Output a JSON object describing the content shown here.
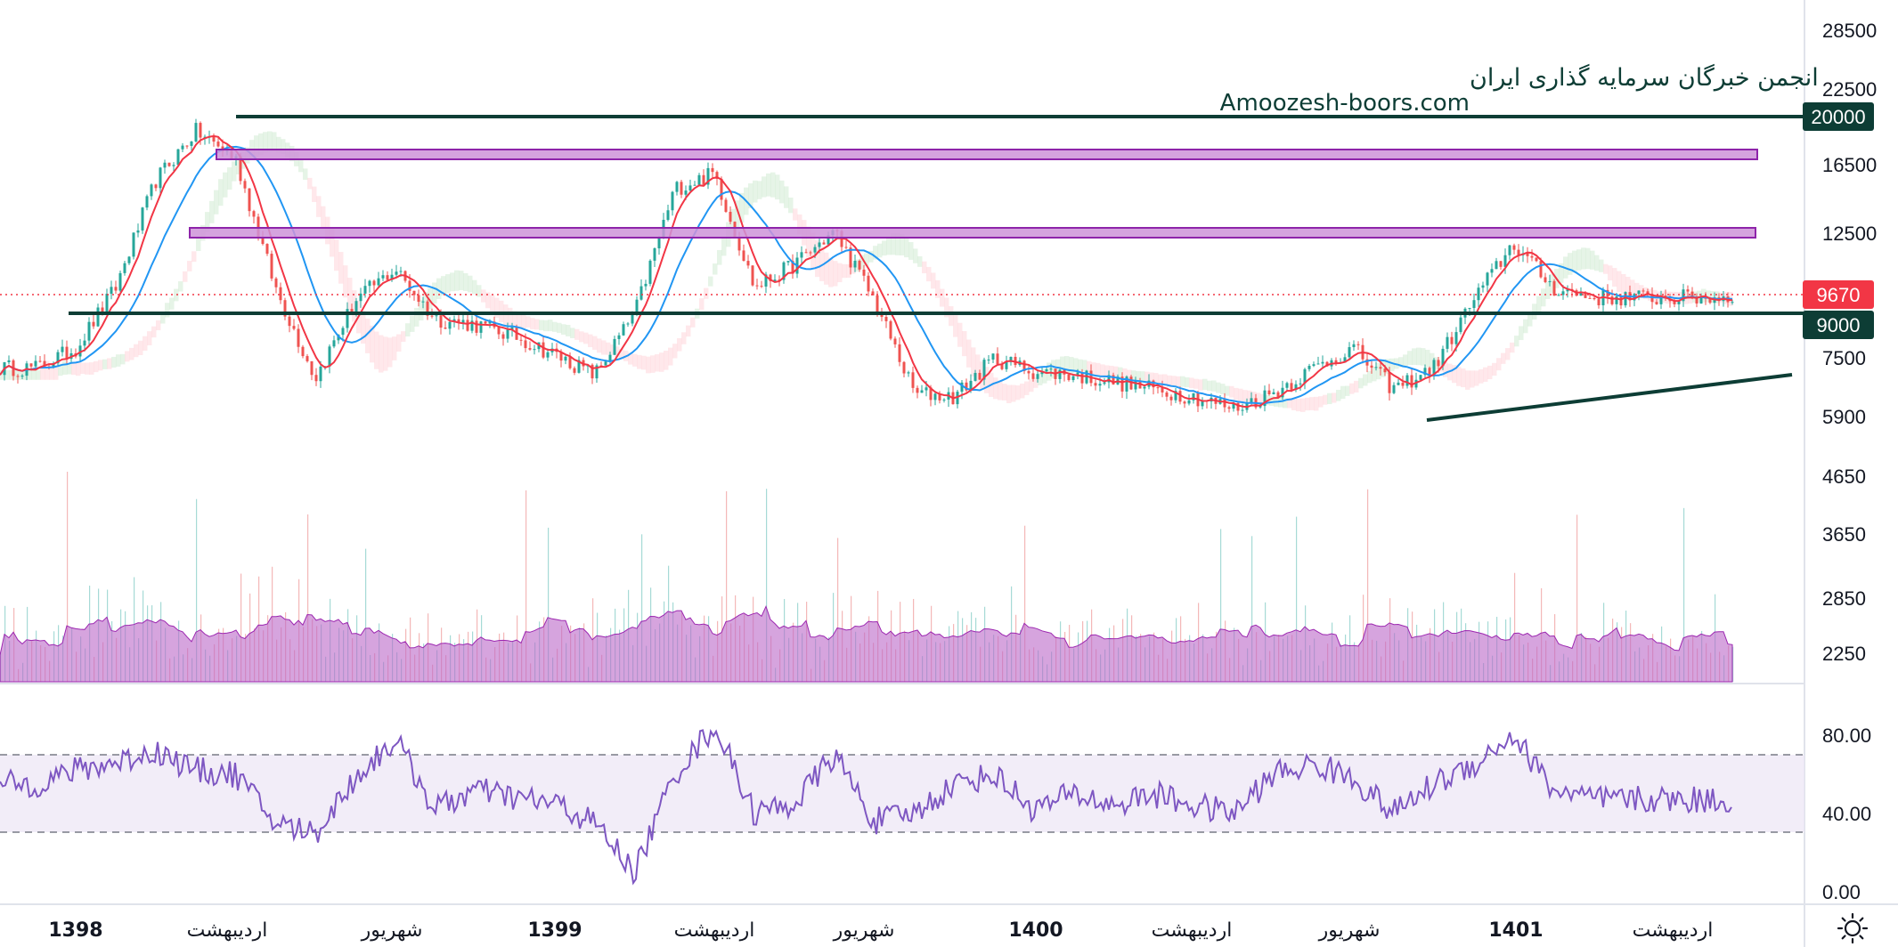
{
  "watermark": {
    "line1": "انجمن خبرگان سرمایه گذاری ایران",
    "line2": "Amoozesh-boors.com"
  },
  "price_axis": {
    "ticks": [
      "28500",
      "22500",
      "16500",
      "12500",
      "7500",
      "5900",
      "4650",
      "3650",
      "2850",
      "2250"
    ]
  },
  "rsi_axis": {
    "ticks": [
      "80.00",
      "40.00",
      "0.00"
    ]
  },
  "badges": {
    "resistance": "20000",
    "current": "9670",
    "support": "9000"
  },
  "time_axis": {
    "labels": [
      "1398",
      "اردیبهشت",
      "شهریور",
      "1399",
      "اردیبهشت",
      "شهریور",
      "1400",
      "اردیبهشت",
      "شهریور",
      "1401",
      "اردیبهشت"
    ],
    "year_labels": [
      "1398",
      "1399",
      "1400",
      "1401"
    ]
  },
  "colors": {
    "up_candle": "#26a69a",
    "down_candle": "#ef5350",
    "fast_ma": "#f23645",
    "slow_ma": "#2196f3",
    "volume_area": "#ba68c8",
    "rsi_line": "#7e57c2",
    "rsi_band": "#ede7f6",
    "zone_fill": "#ce93d8",
    "zone_stroke": "#8e24aa",
    "level_line": "#0d3d35",
    "current_badge": "#f23645"
  },
  "icons": {
    "settings": "sun-gear-icon"
  },
  "chart_data": {
    "type": "candlestick",
    "price_scale": "log",
    "horizontal_levels": [
      20000,
      9000
    ],
    "zones": [
      {
        "from": 16900,
        "to": 17800
      },
      {
        "from": 11900,
        "to": 12500
      }
    ],
    "current_price": 9670,
    "rsi_band": [
      30,
      70
    ],
    "trendline": [
      {
        "x": "1400-12",
        "y": 5600
      },
      {
        "x": "1401-04",
        "y": 6900
      }
    ],
    "close_path": [
      {
        "x": "1397-12",
        "y": 7200
      },
      {
        "x": "1398-01",
        "y": 7800
      },
      {
        "x": "1398-02",
        "y": 10000
      },
      {
        "x": "1398-03",
        "y": 15500
      },
      {
        "x": "1398-04",
        "y": 19000
      },
      {
        "x": "1398-05",
        "y": 17000
      },
      {
        "x": "1398-06",
        "y": 10000
      },
      {
        "x": "1398-07",
        "y": 6900
      },
      {
        "x": "1398-08",
        "y": 9500
      },
      {
        "x": "1398-09",
        "y": 10800
      },
      {
        "x": "1398-10",
        "y": 8800
      },
      {
        "x": "1398-11",
        "y": 8600
      },
      {
        "x": "1398-12",
        "y": 8200
      },
      {
        "x": "1399-01",
        "y": 7600
      },
      {
        "x": "1399-02",
        "y": 7000
      },
      {
        "x": "1399-03",
        "y": 9000
      },
      {
        "x": "1399-04",
        "y": 15000
      },
      {
        "x": "1399-05",
        "y": 16000
      },
      {
        "x": "1399-06",
        "y": 10000
      },
      {
        "x": "1399-07",
        "y": 11000
      },
      {
        "x": "1399-08",
        "y": 12600
      },
      {
        "x": "1399-09",
        "y": 9500
      },
      {
        "x": "1399-10",
        "y": 6500
      },
      {
        "x": "1399-11",
        "y": 6400
      },
      {
        "x": "1399-12",
        "y": 7500
      },
      {
        "x": "1400-01",
        "y": 7100
      },
      {
        "x": "1400-02",
        "y": 7000
      },
      {
        "x": "1400-03",
        "y": 6800
      },
      {
        "x": "1400-04",
        "y": 6600
      },
      {
        "x": "1400-05",
        "y": 6400
      },
      {
        "x": "1400-06",
        "y": 6100
      },
      {
        "x": "1400-07",
        "y": 6500
      },
      {
        "x": "1400-08",
        "y": 7200
      },
      {
        "x": "1400-09",
        "y": 7800
      },
      {
        "x": "1400-10",
        "y": 6600
      },
      {
        "x": "1400-11",
        "y": 7200
      },
      {
        "x": "1400-12",
        "y": 9500
      },
      {
        "x": "1401-01",
        "y": 12000
      },
      {
        "x": "1401-02",
        "y": 10000
      },
      {
        "x": "1401-03",
        "y": 9600
      }
    ],
    "rsi_path": [
      {
        "x": "1397-12",
        "y": 55
      },
      {
        "x": "1398-01",
        "y": 62
      },
      {
        "x": "1398-02",
        "y": 66
      },
      {
        "x": "1398-03",
        "y": 72
      },
      {
        "x": "1398-04",
        "y": 62
      },
      {
        "x": "1398-05",
        "y": 60
      },
      {
        "x": "1398-06",
        "y": 35
      },
      {
        "x": "1398-07",
        "y": 30
      },
      {
        "x": "1398-08",
        "y": 58
      },
      {
        "x": "1398-09",
        "y": 78
      },
      {
        "x": "1398-10",
        "y": 42
      },
      {
        "x": "1398-11",
        "y": 52
      },
      {
        "x": "1398-12",
        "y": 48
      },
      {
        "x": "1399-01",
        "y": 45
      },
      {
        "x": "1399-02",
        "y": 35
      },
      {
        "x": "1399-03",
        "y": 10
      },
      {
        "x": "1399-04",
        "y": 60
      },
      {
        "x": "1399-05",
        "y": 85
      },
      {
        "x": "1399-06",
        "y": 40
      },
      {
        "x": "1399-07",
        "y": 45
      },
      {
        "x": "1399-08",
        "y": 70
      },
      {
        "x": "1399-09",
        "y": 36
      },
      {
        "x": "1399-10",
        "y": 40
      },
      {
        "x": "1399-11",
        "y": 55
      },
      {
        "x": "1399-12",
        "y": 60
      },
      {
        "x": "1400-01",
        "y": 42
      },
      {
        "x": "1400-02",
        "y": 50
      },
      {
        "x": "1400-03",
        "y": 44
      },
      {
        "x": "1400-04",
        "y": 50
      },
      {
        "x": "1400-05",
        "y": 44
      },
      {
        "x": "1400-06",
        "y": 40
      },
      {
        "x": "1400-07",
        "y": 60
      },
      {
        "x": "1400-08",
        "y": 65
      },
      {
        "x": "1400-09",
        "y": 58
      },
      {
        "x": "1400-10",
        "y": 40
      },
      {
        "x": "1400-11",
        "y": 55
      },
      {
        "x": "1400-12",
        "y": 65
      },
      {
        "x": "1401-01",
        "y": 80
      },
      {
        "x": "1401-02",
        "y": 52
      },
      {
        "x": "1401-03",
        "y": 47
      }
    ]
  }
}
